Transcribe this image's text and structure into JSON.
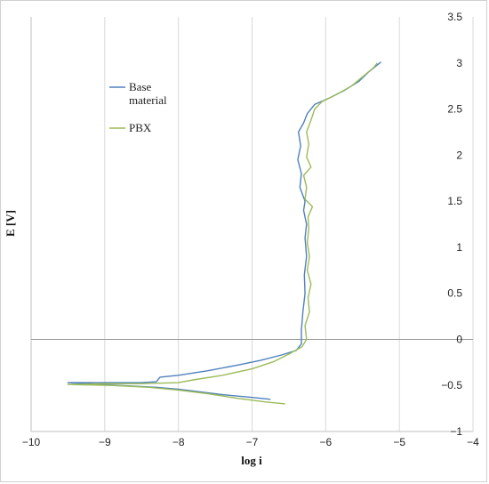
{
  "chart_data": {
    "type": "line",
    "title": "",
    "xlabel": "log i",
    "ylabel": "E [V]",
    "xlim": [
      -10,
      -4
    ],
    "ylim": [
      -1,
      3.5
    ],
    "x_ticks": [
      -10,
      -9,
      -8,
      -7,
      -6,
      -5,
      -4
    ],
    "y_ticks": [
      -1,
      -0.5,
      0,
      0.5,
      1,
      1.5,
      2,
      2.5,
      3,
      3.5
    ],
    "x_tick_labels": [
      "−10",
      "−9",
      "−8",
      "−7",
      "−6",
      "−5",
      "−4"
    ],
    "y_tick_labels": [
      "−1",
      "−0.5",
      "0",
      "0.5",
      "1",
      "1.5",
      "2",
      "2.5",
      "3",
      "3.5"
    ],
    "grid": "vertical",
    "legend": "top-left",
    "series": [
      {
        "name": "Base material",
        "color": "#4f81bd",
        "points": [
          [
            -6.75,
            -0.65
          ],
          [
            -7.0,
            -0.63
          ],
          [
            -7.4,
            -0.6
          ],
          [
            -7.8,
            -0.56
          ],
          [
            -8.0,
            -0.54
          ],
          [
            -8.3,
            -0.52
          ],
          [
            -8.8,
            -0.5
          ],
          [
            -9.5,
            -0.47
          ],
          [
            -9.0,
            -0.47
          ],
          [
            -8.5,
            -0.47
          ],
          [
            -8.3,
            -0.46
          ],
          [
            -8.25,
            -0.41
          ],
          [
            -8.0,
            -0.39
          ],
          [
            -7.6,
            -0.34
          ],
          [
            -7.2,
            -0.28
          ],
          [
            -6.9,
            -0.23
          ],
          [
            -6.6,
            -0.17
          ],
          [
            -6.4,
            -0.12
          ],
          [
            -6.33,
            -0.05
          ],
          [
            -6.33,
            0.1
          ],
          [
            -6.31,
            0.3
          ],
          [
            -6.28,
            0.5
          ],
          [
            -6.29,
            0.7
          ],
          [
            -6.26,
            0.9
          ],
          [
            -6.28,
            1.1
          ],
          [
            -6.26,
            1.25
          ],
          [
            -6.3,
            1.4
          ],
          [
            -6.28,
            1.5
          ],
          [
            -6.35,
            1.65
          ],
          [
            -6.33,
            1.8
          ],
          [
            -6.38,
            1.95
          ],
          [
            -6.34,
            2.1
          ],
          [
            -6.37,
            2.25
          ],
          [
            -6.3,
            2.35
          ],
          [
            -6.25,
            2.45
          ],
          [
            -6.15,
            2.55
          ],
          [
            -5.95,
            2.62
          ],
          [
            -5.75,
            2.7
          ],
          [
            -5.55,
            2.8
          ],
          [
            -5.42,
            2.9
          ],
          [
            -5.25,
            3.01
          ]
        ]
      },
      {
        "name": "PBX",
        "color": "#9bbb59",
        "points": [
          [
            -6.55,
            -0.7
          ],
          [
            -6.8,
            -0.68
          ],
          [
            -7.2,
            -0.64
          ],
          [
            -7.6,
            -0.59
          ],
          [
            -8.0,
            -0.55
          ],
          [
            -8.4,
            -0.52
          ],
          [
            -8.9,
            -0.5
          ],
          [
            -9.5,
            -0.49
          ],
          [
            -9.0,
            -0.48
          ],
          [
            -8.5,
            -0.48
          ],
          [
            -8.0,
            -0.47
          ],
          [
            -7.8,
            -0.44
          ],
          [
            -7.4,
            -0.39
          ],
          [
            -7.0,
            -0.32
          ],
          [
            -6.7,
            -0.24
          ],
          [
            -6.5,
            -0.16
          ],
          [
            -6.32,
            -0.08
          ],
          [
            -6.26,
            0.0
          ],
          [
            -6.28,
            0.15
          ],
          [
            -6.22,
            0.3
          ],
          [
            -6.24,
            0.45
          ],
          [
            -6.2,
            0.6
          ],
          [
            -6.25,
            0.75
          ],
          [
            -6.22,
            0.9
          ],
          [
            -6.25,
            1.05
          ],
          [
            -6.23,
            1.2
          ],
          [
            -6.24,
            1.33
          ],
          [
            -6.18,
            1.44
          ],
          [
            -6.28,
            1.52
          ],
          [
            -6.26,
            1.65
          ],
          [
            -6.3,
            1.78
          ],
          [
            -6.2,
            1.87
          ],
          [
            -6.26,
            1.98
          ],
          [
            -6.23,
            2.12
          ],
          [
            -6.26,
            2.25
          ],
          [
            -6.2,
            2.38
          ],
          [
            -6.15,
            2.5
          ],
          [
            -6.05,
            2.58
          ],
          [
            -5.85,
            2.66
          ],
          [
            -5.65,
            2.75
          ],
          [
            -5.5,
            2.85
          ],
          [
            -5.35,
            2.95
          ],
          [
            -5.3,
            3.0
          ]
        ]
      }
    ]
  }
}
